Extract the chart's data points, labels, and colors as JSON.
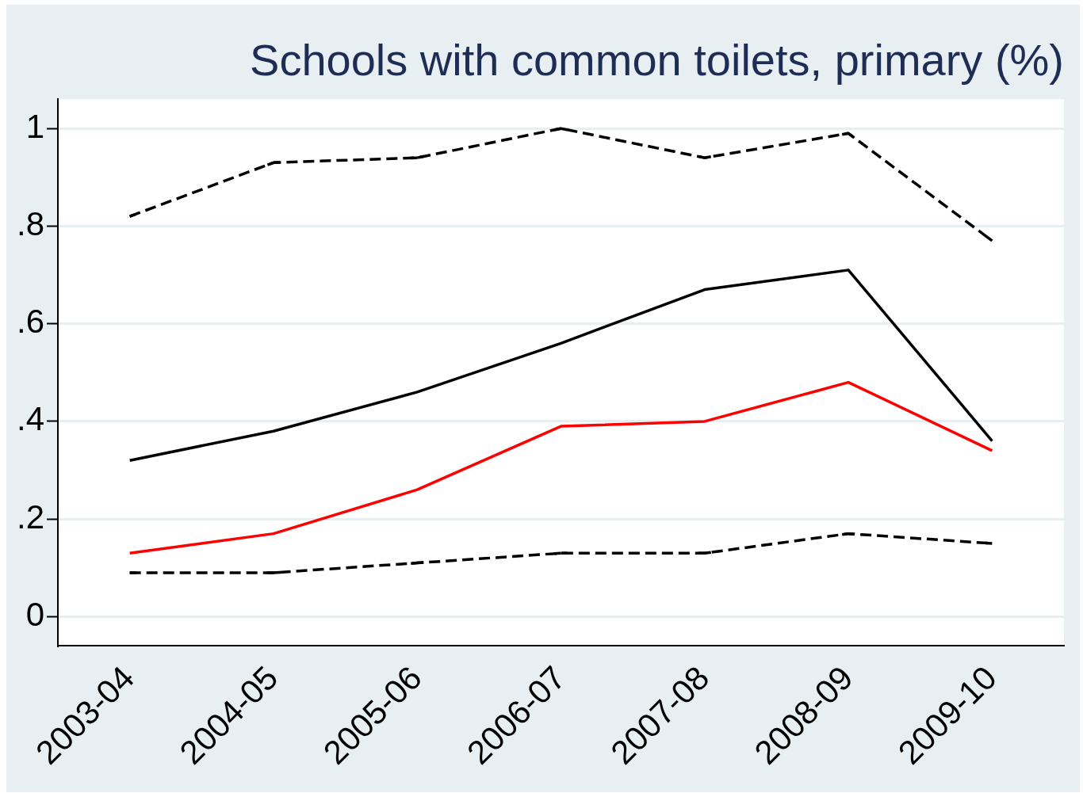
{
  "chart_data": {
    "type": "line",
    "title": "Schools with common toilets, primary (%)",
    "categories": [
      "2003-04",
      "2004-05",
      "2005-06",
      "2006-07",
      "2007-08",
      "2008-09",
      "2009-10"
    ],
    "series": [
      {
        "color": "#000000",
        "line_style": "dashed",
        "values": [
          0.82,
          0.93,
          0.94,
          1.0,
          0.94,
          0.99,
          0.77
        ]
      },
      {
        "color": "#000000",
        "line_style": "solid",
        "values": [
          0.32,
          0.38,
          0.46,
          0.56,
          0.67,
          0.71,
          0.36
        ]
      },
      {
        "color": "#ff0000",
        "line_style": "solid",
        "values": [
          0.13,
          0.17,
          0.26,
          0.39,
          0.4,
          0.48,
          0.34
        ]
      },
      {
        "color": "#000000",
        "line_style": "dashed",
        "values": [
          0.09,
          0.09,
          0.11,
          0.13,
          0.13,
          0.17,
          0.15
        ]
      }
    ],
    "ylim": [
      -0.06,
      1.06
    ],
    "yticks": [
      {
        "value": 0,
        "label": "0"
      },
      {
        "value": 0.2,
        "label": ".2"
      },
      {
        "value": 0.4,
        "label": ".4"
      },
      {
        "value": 0.6,
        "label": ".6"
      },
      {
        "value": 0.8,
        "label": ".8"
      },
      {
        "value": 1,
        "label": "1"
      }
    ],
    "grid": "y",
    "legend": false,
    "marker": "none"
  }
}
